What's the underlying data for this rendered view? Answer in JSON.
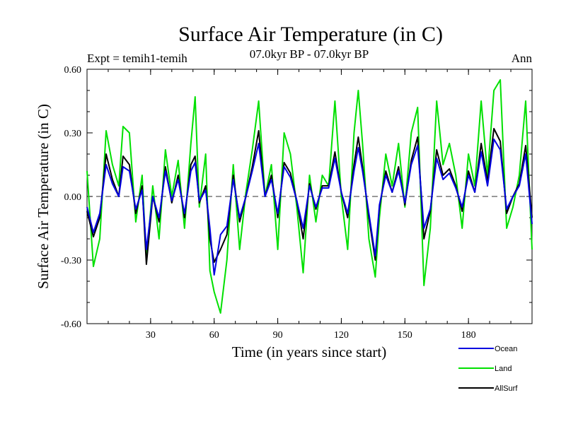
{
  "header": {
    "title": "Surface Air Temperature (in C)",
    "experiment": "Expt = temih1-temih",
    "period": "07.0kyr BP - 07.0kyr BP",
    "season": "Ann"
  },
  "chart_data": {
    "type": "line",
    "title": "Surface Air Temperature (in C)",
    "xlabel": "Time (in years since start)",
    "ylabel": "Surface Air Temperature (in C)",
    "xlim": [
      0,
      210
    ],
    "ylim": [
      -0.6,
      0.6
    ],
    "xticks": [
      30,
      60,
      90,
      120,
      150,
      180
    ],
    "xtick_labels": [
      "30",
      "60",
      "90",
      "120",
      "150",
      "180"
    ],
    "yticks": [
      -0.6,
      -0.3,
      0.0,
      0.3,
      0.6
    ],
    "ytick_labels": [
      "-0.60",
      "-0.30",
      "0.00",
      "0.30",
      "0.60"
    ],
    "reference_line": 0.0,
    "legend_position": "bottom-right, below plot",
    "series": [
      {
        "name": "Land",
        "color": "#00e000",
        "x": [
          0,
          3,
          6,
          9,
          12,
          15,
          17,
          20,
          23,
          26,
          28,
          31,
          34,
          37,
          40,
          43,
          46,
          49,
          51,
          53,
          56,
          58,
          60,
          63,
          66,
          69,
          72,
          75,
          78,
          81,
          84,
          87,
          90,
          93,
          96,
          99,
          102,
          105,
          108,
          111,
          114,
          117,
          120,
          123,
          126,
          128,
          130,
          133,
          136,
          138,
          141,
          144,
          147,
          150,
          153,
          156,
          159,
          162,
          165,
          168,
          171,
          174,
          177,
          180,
          183,
          186,
          189,
          192,
          195,
          198,
          201,
          204,
          207,
          210
        ],
        "values": [
          0.12,
          -0.33,
          -0.2,
          0.31,
          0.15,
          0.05,
          0.33,
          0.3,
          -0.12,
          0.1,
          -0.3,
          0.05,
          -0.2,
          0.22,
          0.0,
          0.17,
          -0.15,
          0.25,
          0.47,
          -0.05,
          0.2,
          -0.35,
          -0.45,
          -0.55,
          -0.3,
          0.15,
          -0.25,
          0.02,
          0.22,
          0.45,
          0.0,
          0.15,
          -0.25,
          0.3,
          0.2,
          -0.05,
          -0.36,
          0.1,
          -0.12,
          0.1,
          0.05,
          0.45,
          0.0,
          -0.25,
          0.3,
          0.5,
          0.25,
          -0.2,
          -0.38,
          -0.1,
          0.2,
          0.05,
          0.25,
          -0.05,
          0.3,
          0.42,
          -0.42,
          -0.15,
          0.45,
          0.15,
          0.25,
          0.1,
          -0.15,
          0.2,
          0.05,
          0.45,
          0.1,
          0.5,
          0.55,
          -0.15,
          -0.05,
          0.1,
          0.45,
          -0.25
        ]
      },
      {
        "name": "AllSurf",
        "color": "#000000",
        "x": [
          0,
          3,
          6,
          9,
          12,
          15,
          17,
          20,
          23,
          26,
          28,
          31,
          34,
          37,
          40,
          43,
          46,
          49,
          51,
          53,
          56,
          58,
          60,
          63,
          66,
          69,
          72,
          75,
          78,
          81,
          84,
          87,
          90,
          93,
          96,
          99,
          102,
          105,
          108,
          111,
          114,
          117,
          120,
          123,
          126,
          128,
          130,
          133,
          136,
          138,
          141,
          144,
          147,
          150,
          153,
          156,
          159,
          162,
          165,
          168,
          171,
          174,
          177,
          180,
          183,
          186,
          189,
          192,
          195,
          198,
          201,
          204,
          207,
          210
        ],
        "values": [
          -0.07,
          -0.19,
          -0.1,
          0.2,
          0.08,
          0.0,
          0.19,
          0.15,
          -0.08,
          0.05,
          -0.32,
          0.0,
          -0.12,
          0.14,
          -0.03,
          0.1,
          -0.1,
          0.15,
          0.19,
          -0.03,
          0.05,
          -0.2,
          -0.31,
          -0.25,
          -0.18,
          0.1,
          -0.12,
          0.0,
          0.14,
          0.31,
          0.0,
          0.1,
          -0.1,
          0.16,
          0.11,
          -0.02,
          -0.2,
          0.06,
          -0.06,
          0.05,
          0.05,
          0.21,
          0.02,
          -0.1,
          0.15,
          0.28,
          0.14,
          -0.1,
          -0.3,
          -0.05,
          0.12,
          0.02,
          0.14,
          -0.04,
          0.17,
          0.28,
          -0.2,
          -0.07,
          0.22,
          0.1,
          0.13,
          0.05,
          -0.07,
          0.12,
          0.02,
          0.25,
          0.07,
          0.32,
          0.26,
          -0.08,
          0.0,
          0.06,
          0.24,
          -0.1
        ]
      },
      {
        "name": "Ocean",
        "color": "#0000e0",
        "x": [
          0,
          3,
          6,
          9,
          12,
          15,
          17,
          20,
          23,
          26,
          28,
          31,
          34,
          37,
          40,
          43,
          46,
          49,
          51,
          53,
          56,
          58,
          60,
          63,
          66,
          69,
          72,
          75,
          78,
          81,
          84,
          87,
          90,
          93,
          96,
          99,
          102,
          105,
          108,
          111,
          114,
          117,
          120,
          123,
          126,
          128,
          130,
          133,
          136,
          138,
          141,
          144,
          147,
          150,
          153,
          156,
          159,
          162,
          165,
          168,
          171,
          174,
          177,
          180,
          183,
          186,
          189,
          192,
          195,
          198,
          201,
          204,
          207,
          210
        ],
        "values": [
          -0.05,
          -0.17,
          -0.08,
          0.15,
          0.06,
          0.0,
          0.14,
          0.12,
          -0.06,
          0.03,
          -0.25,
          0.0,
          -0.1,
          0.12,
          -0.02,
          0.08,
          -0.08,
          0.12,
          0.16,
          -0.02,
          0.03,
          -0.15,
          -0.37,
          -0.18,
          -0.14,
          0.08,
          -0.1,
          0.0,
          0.12,
          0.25,
          0.0,
          0.08,
          -0.08,
          0.14,
          0.09,
          -0.02,
          -0.15,
          0.05,
          -0.05,
          0.04,
          0.04,
          0.18,
          0.02,
          -0.08,
          0.12,
          0.23,
          0.12,
          -0.08,
          -0.28,
          -0.04,
          0.1,
          0.02,
          0.12,
          -0.03,
          0.15,
          0.24,
          -0.15,
          -0.06,
          0.18,
          0.08,
          0.11,
          0.04,
          -0.05,
          0.1,
          0.02,
          0.21,
          0.05,
          0.27,
          0.22,
          -0.06,
          0.0,
          0.05,
          0.2,
          -0.13
        ]
      }
    ]
  },
  "legend": [
    {
      "label": "Ocean",
      "color": "#0000e0"
    },
    {
      "label": "Land",
      "color": "#00e000"
    },
    {
      "label": "AllSurf",
      "color": "#000000"
    }
  ]
}
